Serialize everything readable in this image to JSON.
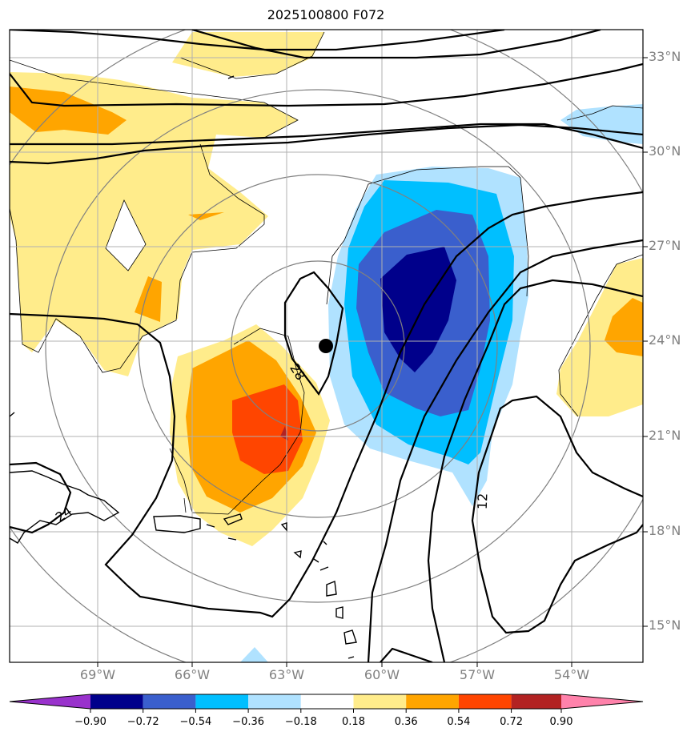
{
  "title": "2025100800 F072",
  "lat_labels": [
    "33°N",
    "30°N",
    "27°N",
    "24°N",
    "21°N",
    "18°N",
    "15°N"
  ],
  "lon_labels": [
    "69°W",
    "66°W",
    "63°W",
    "60°W",
    "57°W",
    "54°W"
  ],
  "contour_labels": [
    "28",
    "24",
    "12"
  ],
  "colorbar": {
    "ticks": [
      "−0.90",
      "−0.72",
      "−0.54",
      "−0.36",
      "−0.18",
      "0.18",
      "0.36",
      "0.54",
      "0.72",
      "0.90"
    ],
    "colors": [
      "#9932cc",
      "#00008b",
      "#3a5fcd",
      "#00bfff",
      "#b0e2ff",
      "#ffffff",
      "#ffec8b",
      "#ffa500",
      "#ff4500",
      "#b22222",
      "#ff82ab"
    ]
  },
  "storm_center": {
    "lat": 23.9,
    "lon": -61.7
  }
}
